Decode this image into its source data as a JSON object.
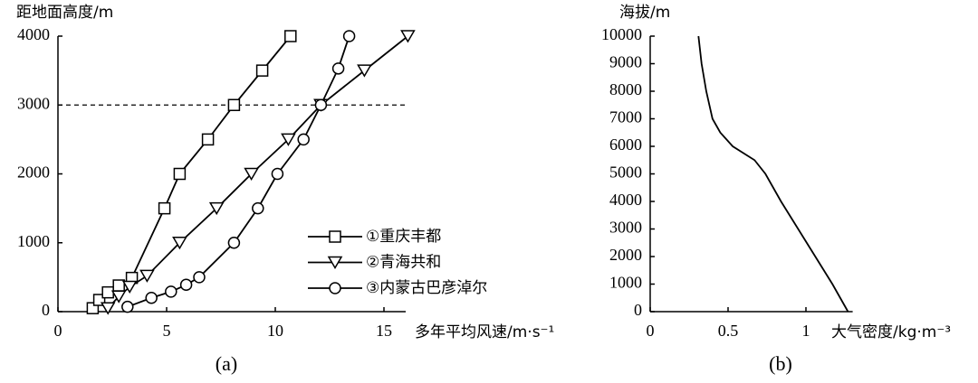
{
  "chart_data": [
    {
      "type": "line",
      "title": "(a)",
      "ylabel": "距地面高度/m",
      "xlabel": "多年平均风速/m·s⁻¹",
      "xlim": [
        0,
        16
      ],
      "xticks": [
        0,
        5,
        10,
        15
      ],
      "ylim": [
        0,
        4000
      ],
      "yticks": [
        0,
        1000,
        2000,
        3000,
        4000
      ],
      "hlines": [
        {
          "y": 3000,
          "style": "dashed"
        }
      ],
      "legend": "lower right",
      "series": [
        {
          "name": "①重庆丰都",
          "color": "#000000",
          "marker": "square",
          "x": [
            1.6,
            1.9,
            2.3,
            2.8,
            3.4,
            4.9,
            5.6,
            6.9,
            8.1,
            9.4,
            10.7
          ],
          "values": [
            50,
            170,
            280,
            380,
            490,
            1500,
            2000,
            2500,
            3000,
            3500,
            4000
          ]
        },
        {
          "name": "②青海共和",
          "color": "#000000",
          "marker": "triangle-down",
          "x": [
            2.3,
            2.8,
            3.3,
            4.1,
            5.6,
            7.3,
            8.9,
            10.6,
            12.1,
            14.1,
            16.1
          ],
          "values": [
            50,
            220,
            360,
            520,
            1000,
            1500,
            2000,
            2500,
            3000,
            3500,
            4000
          ]
        },
        {
          "name": "③内蒙古巴彦淖尔",
          "color": "#000000",
          "marker": "circle",
          "x": [
            3.2,
            4.3,
            5.2,
            5.9,
            6.5,
            8.1,
            9.2,
            10.1,
            11.3,
            12.1,
            12.9,
            13.4
          ],
          "values": [
            70,
            200,
            290,
            390,
            500,
            1000,
            1500,
            2000,
            2500,
            3000,
            3530,
            4000
          ]
        }
      ]
    },
    {
      "type": "line",
      "title": "(b)",
      "ylabel": "海拔/m",
      "xlabel": "大气密度/kg·m⁻³",
      "xlim": [
        0,
        1.3
      ],
      "xticks": [
        0,
        0.5,
        1
      ],
      "ylim": [
        0,
        10000
      ],
      "yticks": [
        0,
        1000,
        2000,
        3000,
        4000,
        5000,
        6000,
        7000,
        8000,
        9000,
        10000
      ],
      "series": [
        {
          "color": "#000000",
          "x": [
            1.27,
            1.17,
            1.06,
            0.95,
            0.84,
            0.74,
            0.67,
            0.53,
            0.45,
            0.4,
            0.36,
            0.33,
            0.31
          ],
          "values": [
            0,
            1000,
            2000,
            3000,
            4000,
            5000,
            5500,
            6000,
            6500,
            7000,
            8000,
            9000,
            10000
          ]
        }
      ]
    }
  ]
}
